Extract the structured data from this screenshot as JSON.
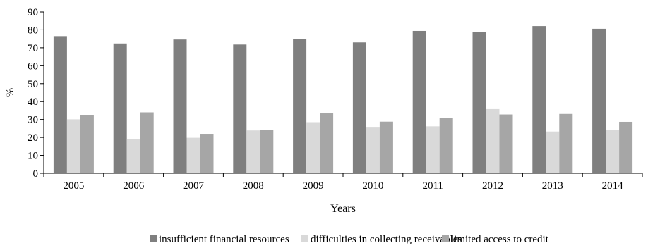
{
  "chart_data": {
    "type": "bar",
    "xlabel": "Years",
    "ylabel": "%",
    "ylim": [
      0,
      90
    ],
    "ytick_step": 10,
    "categories": [
      "2005",
      "2006",
      "2007",
      "2008",
      "2009",
      "2010",
      "2011",
      "2012",
      "2013",
      "2014"
    ],
    "series": [
      {
        "name": "insufficient financial resources",
        "color": "#7f7f7f",
        "values": [
          76.5,
          72.4,
          74.6,
          71.8,
          75.0,
          73.0,
          79.4,
          78.9,
          82.1,
          80.6
        ]
      },
      {
        "name": "difficulties in collecting receivables",
        "color": "#d9d9d9",
        "values": [
          30.1,
          18.9,
          19.8,
          23.9,
          28.5,
          25.5,
          26.2,
          35.8,
          23.3,
          24.1
        ]
      },
      {
        "name": "limited access to credit",
        "color": "#a6a6a6",
        "values": [
          32.3,
          34.0,
          22.0,
          24.0,
          33.4,
          28.8,
          31.0,
          32.8,
          33.1,
          28.7
        ]
      }
    ],
    "grid": false,
    "legend_position": "bottom"
  }
}
